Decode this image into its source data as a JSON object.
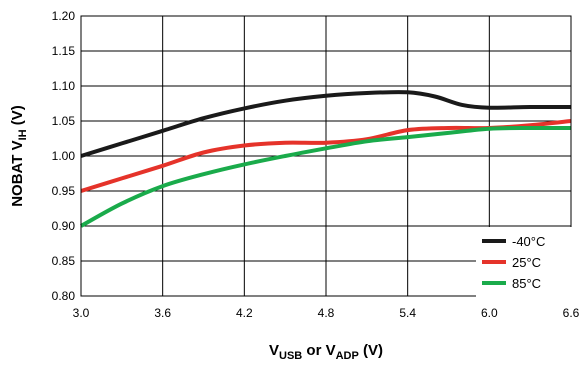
{
  "chart_data": {
    "type": "line",
    "title": "",
    "xlabel": {
      "parts": [
        {
          "text": "V",
          "sub": false
        },
        {
          "text": "USB",
          "sub": true
        },
        {
          "text": " or V",
          "sub": false
        },
        {
          "text": "ADP",
          "sub": true
        },
        {
          "text": " (V)",
          "sub": false
        }
      ]
    },
    "ylabel": {
      "parts": [
        {
          "text": "NOBAT V",
          "sub": false
        },
        {
          "text": "IH",
          "sub": true
        },
        {
          "text": " (V)",
          "sub": false
        }
      ]
    },
    "xlim": [
      3.0,
      6.6
    ],
    "ylim": [
      0.8,
      1.2
    ],
    "xticks": [
      "3.0",
      "3.6",
      "4.2",
      "4.8",
      "5.4",
      "6.0",
      "6.6"
    ],
    "yticks": [
      "0.80",
      "0.85",
      "0.90",
      "0.95",
      "1.00",
      "1.05",
      "1.10",
      "1.15",
      "1.20"
    ],
    "grid": true,
    "legend_position": "bottom-right",
    "series": [
      {
        "name": "-40°C",
        "color": "#1a1a1a",
        "x": [
          3.0,
          3.3,
          3.6,
          3.9,
          4.2,
          4.5,
          4.8,
          5.1,
          5.4,
          5.6,
          5.8,
          6.0,
          6.3,
          6.6
        ],
        "y": [
          1.0,
          1.018,
          1.036,
          1.054,
          1.068,
          1.079,
          1.086,
          1.09,
          1.091,
          1.085,
          1.073,
          1.069,
          1.07,
          1.07
        ]
      },
      {
        "name": "25°C",
        "color": "#e5332a",
        "x": [
          3.0,
          3.3,
          3.6,
          3.9,
          4.2,
          4.5,
          4.8,
          5.1,
          5.4,
          5.7,
          6.0,
          6.3,
          6.6
        ],
        "y": [
          0.95,
          0.968,
          0.986,
          1.005,
          1.015,
          1.019,
          1.019,
          1.024,
          1.037,
          1.04,
          1.04,
          1.044,
          1.05
        ]
      },
      {
        "name": "85°C",
        "color": "#1aab4b",
        "x": [
          3.0,
          3.3,
          3.6,
          3.9,
          4.2,
          4.5,
          4.8,
          5.1,
          5.4,
          5.7,
          6.0,
          6.3,
          6.6
        ],
        "y": [
          0.9,
          0.932,
          0.957,
          0.974,
          0.988,
          1.0,
          1.011,
          1.021,
          1.027,
          1.033,
          1.039,
          1.04,
          1.04
        ]
      }
    ]
  }
}
